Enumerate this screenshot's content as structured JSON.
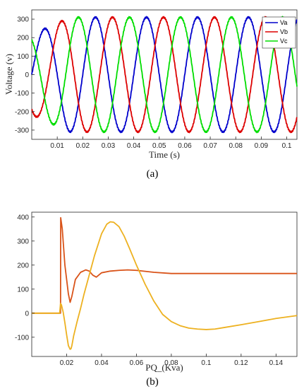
{
  "chart_data": [
    {
      "type": "line",
      "xlabel": "Time (s)",
      "ylabel": "Voltage (v)",
      "xlim": [
        0,
        0.104
      ],
      "ylim": [
        -350,
        350
      ],
      "xticks": [
        "0.01",
        "0.02",
        "0.03",
        "0.04",
        "0.05",
        "0.06",
        "0.07",
        "0.08",
        "0.09",
        "0.1"
      ],
      "xtick_values": [
        0.01,
        0.02,
        0.03,
        0.04,
        0.05,
        0.06,
        0.07,
        0.08,
        0.09,
        0.1
      ],
      "yticks": [
        "300",
        "200",
        "100",
        "0",
        "-100",
        "-200",
        "-300"
      ],
      "ytick_values": [
        300,
        200,
        100,
        0,
        -100,
        -200,
        -300
      ],
      "grid": false,
      "legend_position": "top-right",
      "frequency_hz": 50,
      "amplitude": 310,
      "series": [
        {
          "name": "Va",
          "color": "#0000cc",
          "phase_deg": 0
        },
        {
          "name": "Vb",
          "color": "#dd0000",
          "phase_deg": -120
        },
        {
          "name": "Vc",
          "color": "#00dd00",
          "phase_deg": 120
        }
      ],
      "caption": "(a)"
    },
    {
      "type": "line",
      "xlabel": "PQ_(Kva)",
      "ylabel": "",
      "xlim": [
        0,
        0.152
      ],
      "ylim": [
        -180,
        420
      ],
      "xticks": [
        "0.02",
        "0.04",
        "0.06",
        "0.08",
        "0.1",
        "0.12",
        "0.14"
      ],
      "xtick_values": [
        0.02,
        0.04,
        0.06,
        0.08,
        0.1,
        0.12,
        0.14
      ],
      "yticks": [
        "400",
        "300",
        "200",
        "100",
        "0",
        "-100"
      ],
      "ytick_values": [
        400,
        300,
        200,
        100,
        0,
        -100
      ],
      "grid": false,
      "series": [
        {
          "color": "#d95319",
          "x": [
            0,
            0.0165,
            0.0166,
            0.0175,
            0.019,
            0.021,
            0.022,
            0.023,
            0.025,
            0.028,
            0.031,
            0.033,
            0.035,
            0.037,
            0.04,
            0.045,
            0.05,
            0.055,
            0.06,
            0.07,
            0.08,
            0.1,
            0.12,
            0.14,
            0.152
          ],
          "y": [
            0,
            0,
            397,
            350,
            200,
            80,
            45,
            70,
            140,
            170,
            180,
            175,
            158,
            150,
            168,
            175,
            178,
            180,
            178,
            170,
            165,
            165,
            165,
            165,
            165
          ]
        },
        {
          "color": "#edb120",
          "x": [
            0,
            0.016,
            0.0165,
            0.017,
            0.018,
            0.019,
            0.02,
            0.021,
            0.022,
            0.0225,
            0.023,
            0.024,
            0.026,
            0.028,
            0.03,
            0.033,
            0.036,
            0.04,
            0.043,
            0.045,
            0.047,
            0.05,
            0.053,
            0.056,
            0.06,
            0.065,
            0.07,
            0.075,
            0.08,
            0.085,
            0.09,
            0.095,
            0.1,
            0.105,
            0.11,
            0.12,
            0.13,
            0.14,
            0.15,
            0.152
          ],
          "y": [
            0,
            0,
            40,
            35,
            5,
            -40,
            -90,
            -135,
            -150,
            -148,
            -135,
            -95,
            -35,
            20,
            80,
            160,
            240,
            330,
            370,
            380,
            378,
            360,
            320,
            270,
            200,
            120,
            50,
            -5,
            -35,
            -52,
            -62,
            -66,
            -68,
            -66,
            -60,
            -48,
            -35,
            -22,
            -12,
            -10
          ]
        }
      ],
      "caption": "(b)"
    }
  ]
}
